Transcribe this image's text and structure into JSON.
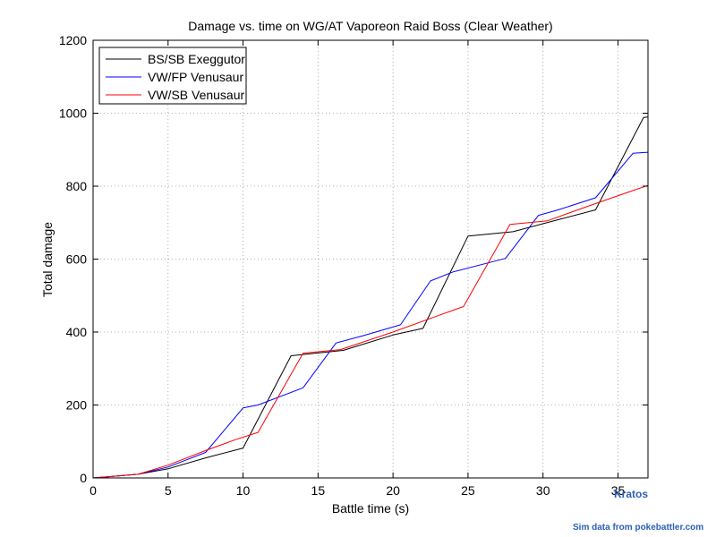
{
  "chart_data": {
    "type": "line",
    "title": "Damage vs. time on WG/AT Vaporeon Raid Boss (Clear Weather)",
    "xlabel": "Battle time (s)",
    "ylabel": "Total damage",
    "xlim": [
      0,
      37
    ],
    "ylim": [
      0,
      1200
    ],
    "xticks": [
      0,
      5,
      10,
      15,
      20,
      25,
      30,
      35
    ],
    "yticks": [
      0,
      200,
      400,
      600,
      800,
      1000,
      1200
    ],
    "grid": true,
    "legend_position": "top-left",
    "series": [
      {
        "name": "BS/SB Exeggutor",
        "color": "#000000",
        "x": [
          0,
          1.5,
          3,
          5,
          7.5,
          10,
          13.2,
          16.7,
          20,
          22,
          25,
          28,
          31,
          33.5,
          36.7,
          37
        ],
        "y": [
          0,
          5,
          10,
          25,
          55,
          82,
          335,
          350,
          392,
          410,
          663,
          675,
          708,
          735,
          988,
          990
        ]
      },
      {
        "name": "VW/FP Venusaur",
        "color": "#0000ff",
        "x": [
          0,
          1.5,
          3,
          5,
          7.5,
          10,
          11,
          14,
          16.2,
          18,
          20.5,
          22.5,
          24,
          27.5,
          29.7,
          31,
          33.5,
          36,
          37
        ],
        "y": [
          0,
          5,
          10,
          30,
          70,
          192,
          200,
          247,
          370,
          390,
          420,
          540,
          565,
          602,
          720,
          735,
          768,
          890,
          893
        ]
      },
      {
        "name": "VW/SB Venusaur",
        "color": "#ff0000",
        "x": [
          0,
          1.5,
          3,
          5,
          7.5,
          9.5,
          11,
          14,
          16.5,
          20,
          23,
          24.7,
          27.8,
          30.3,
          33,
          36,
          37
        ],
        "y": [
          0,
          5,
          10,
          35,
          75,
          105,
          125,
          342,
          352,
          400,
          445,
          470,
          695,
          705,
          745,
          788,
          802
        ]
      }
    ]
  },
  "credits": {
    "author": "Kratos",
    "source": "Sim data from pokebattler.com"
  }
}
